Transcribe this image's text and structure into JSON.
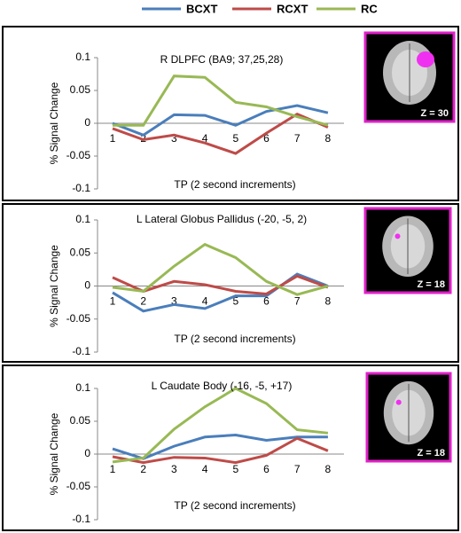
{
  "chart_data": [
    {
      "type": "line",
      "title": "R DLPFC (BA9; 37,25,28)",
      "xlabel": "TP (2 second increments)",
      "ylabel": "% Signal Change",
      "categories": [
        "1",
        "2",
        "3",
        "4",
        "5",
        "6",
        "7",
        "8"
      ],
      "series": [
        {
          "name": "BCXT",
          "color": "#4a7ebb",
          "values": [
            0,
            -0.018,
            0.013,
            0.012,
            -0.003,
            0.018,
            0.027,
            0.016
          ]
        },
        {
          "name": "RCXT",
          "color": "#be4b48",
          "values": [
            -0.008,
            -0.025,
            -0.018,
            -0.03,
            -0.046,
            -0.015,
            0.014,
            -0.006
          ]
        },
        {
          "name": "RC",
          "color": "#98b954",
          "values": [
            -0.003,
            -0.003,
            0.072,
            0.07,
            0.032,
            0.025,
            0.01,
            -0.003
          ]
        }
      ],
      "ylim": [
        -0.1,
        0.1
      ],
      "yticks": [
        -0.1,
        -0.05,
        0,
        0.05,
        0.1
      ],
      "inset_label": "Z = 30"
    },
    {
      "type": "line",
      "title": "L Lateral Globus Pallidus (-20, -5, 2)",
      "xlabel": "TP (2 second increments)",
      "ylabel": "% Signal Change",
      "categories": [
        "1",
        "2",
        "3",
        "4",
        "5",
        "6",
        "7",
        "8"
      ],
      "series": [
        {
          "name": "BCXT",
          "color": "#4a7ebb",
          "values": [
            -0.01,
            -0.038,
            -0.028,
            -0.034,
            -0.015,
            -0.015,
            0.018,
            0
          ]
        },
        {
          "name": "RCXT",
          "color": "#be4b48",
          "values": [
            0.013,
            -0.008,
            0.007,
            0.002,
            -0.008,
            -0.012,
            0.015,
            -0.002
          ]
        },
        {
          "name": "RC",
          "color": "#98b954",
          "values": [
            -0.002,
            -0.008,
            0.03,
            0.063,
            0.043,
            0.007,
            -0.013,
            0
          ]
        }
      ],
      "ylim": [
        -0.1,
        0.1
      ],
      "yticks": [
        -0.1,
        -0.05,
        0,
        0.05,
        0.1
      ],
      "inset_label": "Z = 18"
    },
    {
      "type": "line",
      "title": "L Caudate Body (-16, -5, +17)",
      "xlabel": "TP (2 second increments)",
      "ylabel": "% Signal Change",
      "categories": [
        "1",
        "2",
        "3",
        "4",
        "5",
        "6",
        "7",
        "8"
      ],
      "series": [
        {
          "name": "BCXT",
          "color": "#4a7ebb",
          "values": [
            0.008,
            -0.007,
            0.012,
            0.026,
            0.029,
            0.021,
            0.026,
            0.026
          ]
        },
        {
          "name": "RCXT",
          "color": "#be4b48",
          "values": [
            -0.004,
            -0.013,
            -0.005,
            -0.006,
            -0.013,
            -0.002,
            0.024,
            0.005
          ]
        },
        {
          "name": "RC",
          "color": "#98b954",
          "values": [
            -0.012,
            -0.006,
            0.038,
            0.072,
            0.1,
            0.077,
            0.037,
            0.032
          ]
        }
      ],
      "ylim": [
        -0.1,
        0.1
      ],
      "yticks": [
        -0.1,
        -0.05,
        0,
        0.05,
        0.1
      ],
      "inset_label": "Z = 18"
    }
  ]
}
